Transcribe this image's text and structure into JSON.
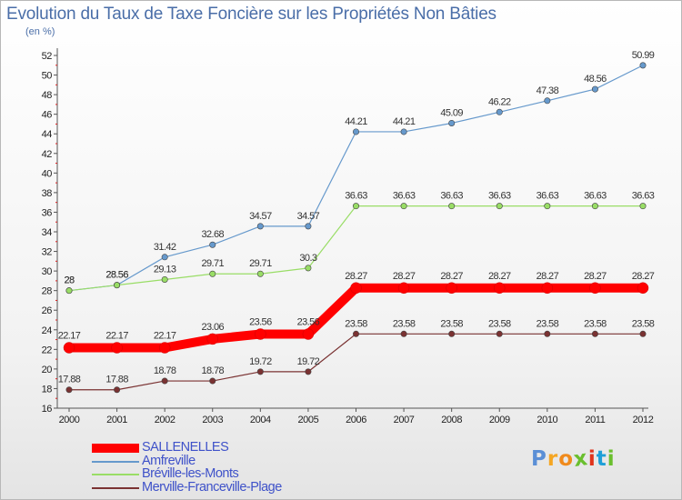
{
  "page": {
    "title": "Evolution du Taux de Taxe Foncière sur les Propriétés Non Bâties",
    "subtitle": "(en %)"
  },
  "logo": {
    "text": "Proxiti",
    "letter_colors": [
      "#5b8fd6",
      "#f5a623",
      "#f08a1c",
      "#6abf2e",
      "#e0341c",
      "#1e9fd8",
      "#6abf2e"
    ]
  },
  "chart_data": {
    "type": "line",
    "title": "Evolution du Taux de Taxe Foncière sur les Propriétés Non Bâties",
    "subtitle": "(en %)",
    "xlabel": "",
    "ylabel": "",
    "x": [
      "2000",
      "2001",
      "2002",
      "2003",
      "2004",
      "2005",
      "2006",
      "2007",
      "2008",
      "2009",
      "2010",
      "2011",
      "2012"
    ],
    "ylim": [
      16,
      52
    ],
    "yticks": [
      16,
      18,
      20,
      22,
      24,
      26,
      28,
      30,
      32,
      34,
      36,
      38,
      40,
      42,
      44,
      46,
      48,
      50,
      52
    ],
    "grid": false,
    "legend_position": "bottom-left",
    "series": [
      {
        "name": "SALLENELLES",
        "color": "#ff0000",
        "values": [
          22.17,
          22.17,
          22.17,
          23.06,
          23.56,
          23.56,
          28.27,
          28.27,
          28.27,
          28.27,
          28.27,
          28.27,
          28.27
        ],
        "labels": [
          "22.17",
          "22.17",
          "22.17",
          "23.06",
          "23.56",
          "23.56",
          "28.27",
          "28.27",
          "28.27",
          "28.27",
          "28.27",
          "28.27",
          "28.27"
        ]
      },
      {
        "name": "Amfreville",
        "color": "#6699cc",
        "values": [
          28,
          28.56,
          31.42,
          32.68,
          34.57,
          34.57,
          44.21,
          44.21,
          45.09,
          46.22,
          47.38,
          48.56,
          50.99
        ],
        "labels": [
          "28",
          "28.56",
          "31.42",
          "32.68",
          "34.57",
          "34.57",
          "44.21",
          "44.21",
          "45.09",
          "46.22",
          "47.38",
          "48.56",
          "50.99"
        ]
      },
      {
        "name": "Bréville-les-Monts",
        "color": "#99dd66",
        "values": [
          28,
          28.56,
          29.13,
          29.71,
          29.71,
          30.3,
          36.63,
          36.63,
          36.63,
          36.63,
          36.63,
          36.63,
          36.63
        ],
        "labels": [
          "28",
          "28.56",
          "29.13",
          "29.71",
          "29.71",
          "30.3",
          "36.63",
          "36.63",
          "36.63",
          "36.63",
          "36.63",
          "36.63",
          "36.63"
        ]
      },
      {
        "name": "Merville-Franceville-Plage",
        "color": "#7a3232",
        "values": [
          17.88,
          17.88,
          18.78,
          18.78,
          19.72,
          19.72,
          23.58,
          23.58,
          23.58,
          23.58,
          23.58,
          23.58,
          23.58
        ],
        "labels": [
          "17.88",
          "17.88",
          "18.78",
          "18.78",
          "19.72",
          "19.72",
          "23.58",
          "23.58",
          "23.58",
          "23.58",
          "23.58",
          "23.58",
          "23.58"
        ]
      }
    ]
  }
}
